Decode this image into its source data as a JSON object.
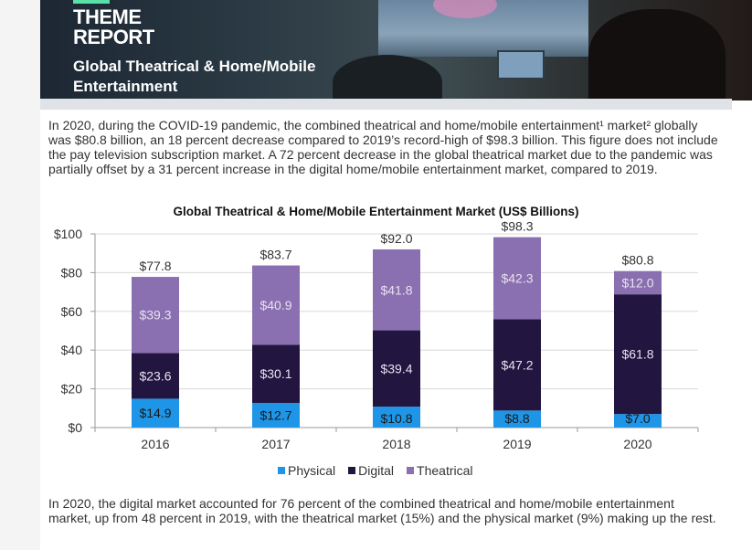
{
  "banner": {
    "title_line1": "THEME",
    "title_line2": "REPORT",
    "subtitle": "Global Theatrical & Home/Mobile Entertainment"
  },
  "intro_text": "In 2020, during the COVID-19 pandemic, the combined theatrical and home/mobile entertainment¹ market² globally was $80.8 billion, an 18 percent decrease compared to 2019’s record-high of $98.3 billion. This figure does not include the pay television subscription market. A 72 percent decrease in the global theatrical market due to the pandemic was partially offset by a 31 percent increase in the digital home/mobile entertainment market, compared to 2019.",
  "outro_text": "In 2020, the digital market accounted for 76 percent of the combined theatrical and home/mobile entertainment market, up from 48 percent in 2019, with the theatrical market (15%) and the physical market (9%) making up the rest.",
  "colors": {
    "physical": "#1e95e6",
    "digital": "#221540",
    "theatrical": "#8a70b0",
    "grid": "#d8d8d8",
    "axis": "#999999"
  },
  "chart_data": {
    "type": "bar",
    "stacked": true,
    "title": "Global Theatrical & Home/Mobile Entertainment Market (US$ Billions)",
    "categories": [
      "2016",
      "2017",
      "2018",
      "2019",
      "2020"
    ],
    "series": [
      {
        "name": "Physical",
        "values": [
          14.9,
          12.7,
          10.8,
          8.8,
          7.0
        ],
        "labels": [
          "$14.9",
          "$12.7",
          "$10.8",
          "$8.8",
          "$7.0"
        ]
      },
      {
        "name": "Digital",
        "values": [
          23.6,
          30.1,
          39.4,
          47.2,
          61.8
        ],
        "labels": [
          "$23.6",
          "$30.1",
          "$39.4",
          "$47.2",
          "$61.8"
        ]
      },
      {
        "name": "Theatrical",
        "values": [
          39.3,
          40.9,
          41.8,
          42.3,
          12.0
        ],
        "labels": [
          "$39.3",
          "$40.9",
          "$41.8",
          "$42.3",
          "$12.0"
        ]
      }
    ],
    "totals": [
      77.8,
      83.7,
      92.0,
      98.3,
      80.8
    ],
    "total_labels": [
      "$77.8",
      "$83.7",
      "$92.0",
      "$98.3",
      "$80.8"
    ],
    "y_ticks": [
      "$0",
      "$20",
      "$40",
      "$60",
      "$80",
      "$100"
    ],
    "ylim": [
      0,
      100
    ],
    "grid": true,
    "legend_position": "bottom"
  }
}
